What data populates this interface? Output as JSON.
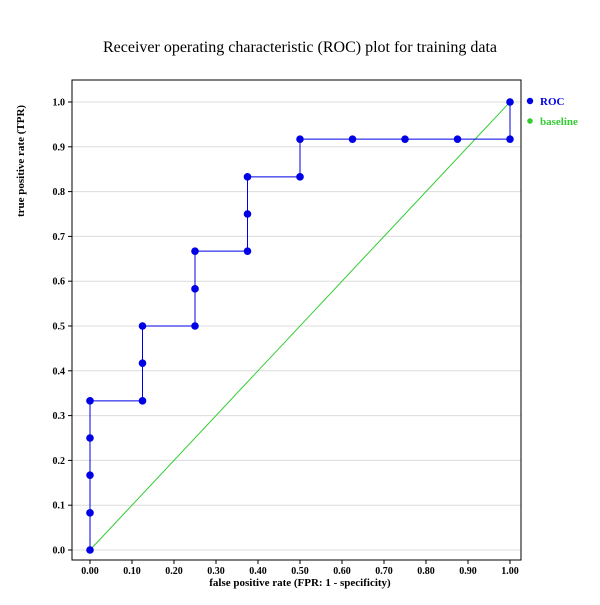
{
  "chart_data": {
    "type": "line",
    "title": "Receiver operating characteristic (ROC) plot for training data",
    "xlabel": "false positive rate (FPR: 1 - specificity)",
    "ylabel": "true positive rate (TPR)",
    "xlim": [
      0,
      1
    ],
    "ylim": [
      0,
      1
    ],
    "xticks": [
      "0.00",
      "0.10",
      "0.20",
      "0.30",
      "0.40",
      "0.50",
      "0.60",
      "0.70",
      "0.80",
      "0.90",
      "1.00"
    ],
    "yticks": [
      "0.0",
      "0.1",
      "0.2",
      "0.3",
      "0.4",
      "0.5",
      "0.6",
      "0.7",
      "0.8",
      "0.9",
      "1.0"
    ],
    "grid": "horizontal",
    "legend_position": "top-right",
    "series": [
      {
        "name": "ROC",
        "color": "#0000e6",
        "x": [
          0,
          0,
          0,
          0,
          0,
          0.125,
          0.125,
          0.125,
          0.25,
          0.25,
          0.25,
          0.375,
          0.375,
          0.375,
          0.5,
          0.5,
          0.625,
          0.75,
          0.875,
          1.0,
          1.0
        ],
        "y": [
          0,
          0.083,
          0.167,
          0.25,
          0.333,
          0.333,
          0.417,
          0.5,
          0.5,
          0.583,
          0.667,
          0.667,
          0.75,
          0.833,
          0.833,
          0.917,
          0.917,
          0.917,
          0.917,
          0.917,
          1.0
        ]
      },
      {
        "name": "baseline",
        "color": "#33cc33",
        "x": [
          0,
          1
        ],
        "y": [
          0,
          1
        ]
      }
    ]
  }
}
